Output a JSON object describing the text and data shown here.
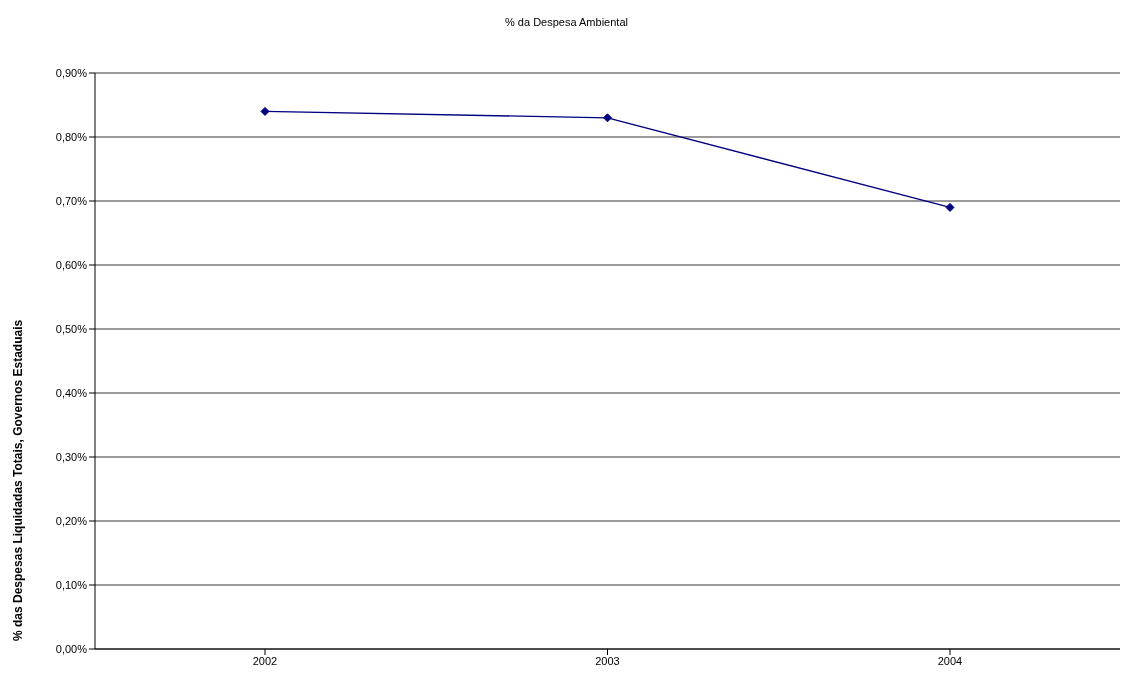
{
  "chart_data": {
    "type": "line",
    "title": "% da Despesa Ambiental",
    "ylabel": "% das Despesas Liquidadas Totais, Governos Estaduais",
    "categories": [
      "2002",
      "2003",
      "2004"
    ],
    "series": [
      {
        "color": "#000080",
        "values": [
          0.84,
          0.83,
          0.69
        ]
      }
    ],
    "ylim": [
      0,
      0.9
    ],
    "yticks": [
      {
        "value": 0,
        "label": "0,00%"
      },
      {
        "value": 0.1,
        "label": "0,10%"
      },
      {
        "value": 0.2,
        "label": "0,20%"
      },
      {
        "value": 0.3,
        "label": "0,30%"
      },
      {
        "value": 0.4,
        "label": "0,40%"
      },
      {
        "value": 0.5,
        "label": "0,50%"
      },
      {
        "value": 0.6,
        "label": "0,60%"
      },
      {
        "value": 0.7,
        "label": "0,70%"
      },
      {
        "value": 0.8,
        "label": "0,80%"
      },
      {
        "value": 0.9,
        "label": "0,90%"
      }
    ],
    "grid": "y",
    "legend": false,
    "marker": "diamond",
    "line_style": "solid"
  }
}
